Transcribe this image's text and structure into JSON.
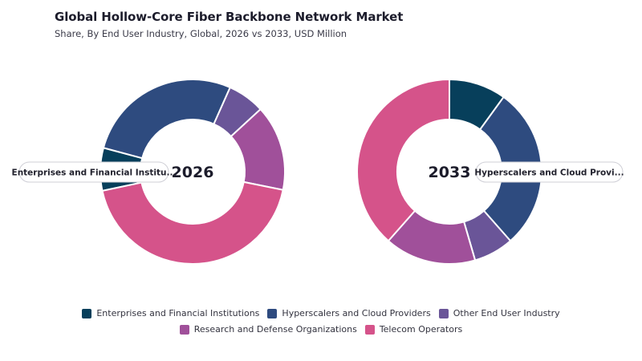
{
  "header": {
    "title": "Global Hollow-Core Fiber Backbone Network Market",
    "subtitle": "Share, By End User Industry, Global, 2026 vs 2033, USD Million"
  },
  "colors": {
    "enterprises": "#073f5b",
    "hyperscalers": "#2e4b7f",
    "other": "#6a5598",
    "research": "#a0509a",
    "telecom": "#d5538a"
  },
  "legend": [
    {
      "label": "Enterprises and Financial Institutions",
      "color": "#073f5b"
    },
    {
      "label": "Hyperscalers and Cloud Providers",
      "color": "#2e4b7f"
    },
    {
      "label": "Other End User Industry",
      "color": "#6a5598"
    },
    {
      "label": "Research and Defense Organizations",
      "color": "#a0509a"
    },
    {
      "label": "Telecom Operators",
      "color": "#d5538a"
    }
  ],
  "chart_data": [
    {
      "type": "pie",
      "center_label": "2026",
      "hover_label": "Enterprises and Financial Institu...",
      "categories": [
        "Enterprises and Financial Institutions",
        "Hyperscalers and Cloud Providers",
        "Other End User Industry",
        "Research and Defense Organizations",
        "Telecom Operators"
      ],
      "values": [
        7.5,
        27.5,
        6.5,
        15,
        43.5
      ]
    },
    {
      "type": "pie",
      "center_label": "2033",
      "hover_label": "Hyperscalers and Cloud Provi...",
      "categories": [
        "Enterprises and Financial Institutions",
        "Hyperscalers and Cloud Providers",
        "Other End User Industry",
        "Research and Defense Organizations",
        "Telecom Operators"
      ],
      "values": [
        10,
        28.5,
        7,
        16,
        38.5
      ]
    }
  ]
}
